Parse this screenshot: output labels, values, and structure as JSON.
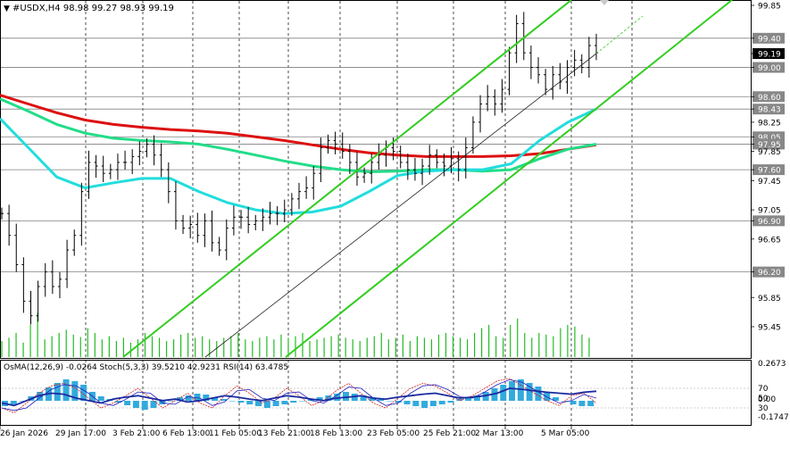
{
  "window": {
    "symbol_line": "#USDX,H4  98.98 99.27 98.93 99.19"
  },
  "indicator_header": "OsMA(12,26,9) -0.0264  Stoch(5,3,3) 39.5210 42.9231  RSI(14) 63.4785",
  "chart_data": {
    "type": "candlestick",
    "symbol": "#USDX",
    "timeframe": "H4",
    "last": {
      "open": 98.98,
      "high": 99.27,
      "low": 98.93,
      "close": 99.19
    },
    "y_axis_labels": [
      "99.85",
      "99.40",
      "99.19",
      "99.00",
      "98.60",
      "98.43",
      "98.25",
      "98.05",
      "97.95",
      "97.85",
      "97.60",
      "97.45",
      "97.05",
      "96.90",
      "96.65",
      "96.20",
      "95.85",
      "95.45"
    ],
    "level_lines": [
      "99.40",
      "99.00",
      "98.60",
      "98.43",
      "98.05",
      "97.95",
      "97.60",
      "96.90",
      "96.20"
    ],
    "current_price_label": "99.19",
    "x_labels": [
      "26 Jan 2026",
      "29 Jan 17:00",
      "3 Feb 21:00",
      "6 Feb 13:00",
      "11 Feb 05:00",
      "13 Feb 21:00",
      "18 Feb 13:00",
      "23 Feb 05:00",
      "25 Feb 21:00",
      "2 Mar 13:00",
      "5 Mar 05:00"
    ],
    "close_path": [
      97.0,
      96.7,
      96.3,
      95.8,
      95.6,
      96.0,
      96.2,
      96.0,
      96.1,
      96.5,
      96.7,
      97.3,
      97.7,
      97.65,
      97.55,
      97.6,
      97.7,
      97.7,
      97.78,
      97.85,
      97.95,
      97.8,
      97.6,
      97.3,
      96.9,
      96.8,
      96.85,
      96.7,
      96.9,
      96.6,
      96.5,
      96.8,
      96.95,
      96.95,
      96.85,
      96.9,
      96.95,
      97.0,
      97.0,
      97.05,
      97.2,
      97.3,
      97.35,
      97.55,
      97.9,
      98.0,
      97.95,
      97.85,
      97.7,
      97.5,
      97.55,
      97.7,
      97.8,
      97.9,
      97.85,
      97.7,
      97.6,
      97.55,
      97.65,
      97.8,
      97.7,
      97.65,
      97.75,
      97.6,
      97.9,
      98.25,
      98.5,
      98.6,
      98.5,
      98.7,
      99.2,
      99.6,
      99.2,
      99.0,
      98.9,
      98.7,
      98.9,
      98.8,
      99.0,
      99.1,
      99.0,
      99.3,
      99.2
    ],
    "moving_averages": [
      {
        "color": "#dd1111",
        "values": [
          98.62,
          98.5,
          98.38,
          98.28,
          98.22,
          98.18,
          98.15,
          98.13,
          98.1,
          98.05,
          98.0,
          97.94,
          97.88,
          97.83,
          97.8,
          97.78,
          97.78,
          97.78,
          97.79,
          97.82,
          97.88,
          97.94
        ]
      },
      {
        "color": "#22dd88",
        "values": [
          98.57,
          98.4,
          98.22,
          98.1,
          98.03,
          98.0,
          97.98,
          97.95,
          97.88,
          97.8,
          97.72,
          97.65,
          97.6,
          97.57,
          97.58,
          97.6,
          97.6,
          97.58,
          97.6,
          97.75,
          97.88,
          97.95
        ]
      },
      {
        "color": "#22dddd",
        "values": [
          98.3,
          97.9,
          97.5,
          97.35,
          97.42,
          97.48,
          97.48,
          97.3,
          97.15,
          97.05,
          97.0,
          97.02,
          97.1,
          97.3,
          97.52,
          97.58,
          97.6,
          97.6,
          97.68,
          98.0,
          98.25,
          98.43
        ]
      }
    ],
    "trend_lines": [
      {
        "name": "",
        "color": "#33cc22",
        "from": [
          138,
          400
        ],
        "to": [
          640,
          0
        ]
      },
      {
        "name": "",
        "color": "#33cc22",
        "from": [
          320,
          400
        ],
        "to": [
          820,
          0
        ]
      },
      {
        "name": "",
        "color": "#222222",
        "from": [
          230,
          400
        ],
        "to": [
          668,
          60
        ]
      }
    ],
    "volume": [
      20,
      24,
      30,
      18,
      40,
      55,
      22,
      26,
      30,
      34,
      28,
      25,
      36,
      30,
      22,
      26,
      20,
      24,
      18,
      22,
      30,
      26,
      24,
      20,
      22,
      28,
      30,
      24,
      26,
      22,
      20,
      24,
      26,
      30,
      22,
      20,
      24,
      26,
      22,
      28,
      24,
      26,
      30,
      20,
      22,
      24,
      26,
      28,
      24,
      22,
      20,
      24,
      26,
      30,
      22,
      24,
      28,
      20,
      26,
      24,
      22,
      28,
      30,
      26,
      24,
      22,
      30,
      36,
      40,
      26,
      24,
      40,
      48,
      30,
      24,
      30,
      28,
      26,
      36,
      40,
      38,
      28,
      24
    ],
    "indicators": {
      "osma": {
        "label": "OsMA(12,26,9)",
        "value": -0.0264
      },
      "stoch": {
        "label": "Stoch(5,3,3)",
        "main": 39.521,
        "signal": 42.9231
      },
      "rsi": {
        "label": "RSI(14)",
        "value": 63.4785
      },
      "axis_labels": [
        "0.2673",
        "70",
        "50",
        "30",
        "0.00",
        "-0.1747"
      ],
      "rsi_path": [
        40,
        35,
        45,
        55,
        60,
        58,
        50,
        45,
        40,
        48,
        52,
        55,
        50,
        45,
        48,
        42,
        45,
        50,
        55,
        52,
        48,
        45,
        50,
        55,
        52,
        48,
        45,
        50,
        52,
        55,
        50,
        48,
        52,
        55,
        58,
        60,
        55,
        50,
        52,
        55,
        60,
        70,
        68,
        65,
        62,
        60,
        58,
        62,
        64
      ],
      "stoch_path": [
        30,
        20,
        40,
        60,
        75,
        80,
        70,
        50,
        30,
        40,
        55,
        70,
        50,
        30,
        45,
        60,
        40,
        30,
        55,
        75,
        60,
        40,
        50,
        70,
        55,
        35,
        45,
        65,
        80,
        60,
        40,
        30,
        50,
        70,
        80,
        75,
        60,
        45,
        55,
        70,
        85,
        90,
        75,
        60,
        45,
        35,
        55,
        60,
        40
      ],
      "osma_bars": [
        -6,
        -4,
        0,
        5,
        10,
        15,
        20,
        24,
        22,
        18,
        10,
        5,
        2,
        -2,
        -5,
        -8,
        -10,
        -8,
        -4,
        0,
        4,
        6,
        8,
        7,
        4,
        2,
        0,
        -2,
        -4,
        -6,
        -8,
        -6,
        -4,
        -2,
        0,
        2,
        4,
        6,
        8,
        10,
        8,
        6,
        4,
        2,
        0,
        -2,
        -4,
        -6,
        -8,
        -6,
        -4,
        -2,
        2,
        4,
        6,
        10,
        14,
        18,
        22,
        24,
        20,
        16,
        10,
        4,
        0,
        -4,
        -6,
        -6
      ]
    }
  }
}
